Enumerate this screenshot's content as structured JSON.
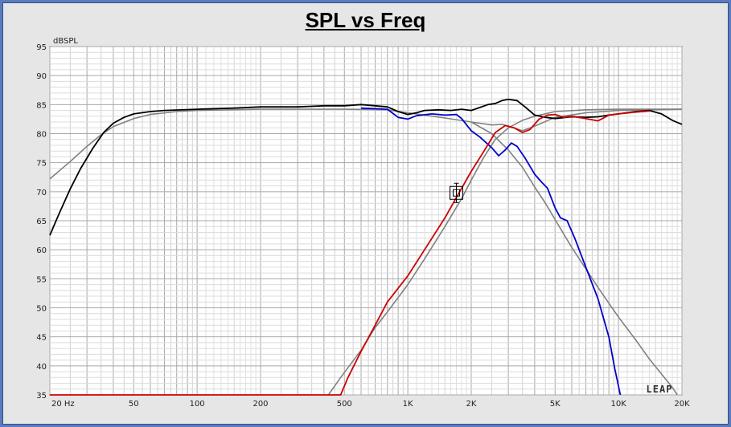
{
  "chart_data": {
    "type": "line",
    "title": "SPL vs Freq",
    "ylabel": "dBSPL",
    "x_scale": "log",
    "xlim": [
      20,
      20000
    ],
    "ylim": [
      35,
      95
    ],
    "y_ticks": [
      35,
      40,
      45,
      50,
      55,
      60,
      65,
      70,
      75,
      80,
      85,
      90,
      95
    ],
    "x_ticks": [
      {
        "value": 20,
        "label": "20  Hz"
      },
      {
        "value": 50,
        "label": "50"
      },
      {
        "value": 100,
        "label": "100"
      },
      {
        "value": 200,
        "label": "200"
      },
      {
        "value": 500,
        "label": "500"
      },
      {
        "value": 1000,
        "label": "1K"
      },
      {
        "value": 2000,
        "label": "2K"
      },
      {
        "value": 5000,
        "label": "5K"
      },
      {
        "value": 10000,
        "label": "10K"
      },
      {
        "value": 20000,
        "label": "20K"
      }
    ],
    "grid": true,
    "watermark": "LEAP",
    "series": [
      {
        "color": "#000000",
        "points": [
          [
            20,
            62.5
          ],
          [
            22,
            66
          ],
          [
            25,
            70.5
          ],
          [
            28,
            74
          ],
          [
            32,
            77.5
          ],
          [
            36,
            80.2
          ],
          [
            40,
            81.8
          ],
          [
            45,
            82.8
          ],
          [
            50,
            83.4
          ],
          [
            60,
            83.8
          ],
          [
            70,
            84
          ],
          [
            100,
            84.2
          ],
          [
            150,
            84.4
          ],
          [
            200,
            84.6
          ],
          [
            300,
            84.6
          ],
          [
            400,
            84.8
          ],
          [
            500,
            84.8
          ],
          [
            600,
            85
          ],
          [
            700,
            84.8
          ],
          [
            800,
            84.6
          ],
          [
            900,
            83.8
          ],
          [
            1000,
            83.3
          ],
          [
            1100,
            83.6
          ],
          [
            1200,
            84
          ],
          [
            1400,
            84.1
          ],
          [
            1600,
            84
          ],
          [
            1800,
            84.2
          ],
          [
            2000,
            84
          ],
          [
            2200,
            84.5
          ],
          [
            2400,
            85
          ],
          [
            2600,
            85.2
          ],
          [
            2800,
            85.7
          ],
          [
            3000,
            85.9
          ],
          [
            3300,
            85.7
          ],
          [
            3600,
            84.6
          ],
          [
            4000,
            83.2
          ],
          [
            4500,
            82.8
          ],
          [
            5000,
            82.6
          ],
          [
            6000,
            82.9
          ],
          [
            7000,
            82.8
          ],
          [
            8000,
            82.9
          ],
          [
            9000,
            83.2
          ],
          [
            10000,
            83.4
          ],
          [
            12000,
            83.8
          ],
          [
            14000,
            84
          ],
          [
            16000,
            83.4
          ],
          [
            18000,
            82.3
          ],
          [
            20000,
            81.6
          ]
        ]
      },
      {
        "color": "#808080",
        "points": [
          [
            20,
            72.2
          ],
          [
            25,
            75.2
          ],
          [
            30,
            77.8
          ],
          [
            35,
            79.8
          ],
          [
            40,
            81.2
          ],
          [
            50,
            82.6
          ],
          [
            60,
            83.3
          ],
          [
            80,
            83.8
          ],
          [
            100,
            84
          ],
          [
            200,
            84.2
          ],
          [
            500,
            84.2
          ],
          [
            800,
            84.1
          ],
          [
            1000,
            83.6
          ],
          [
            1200,
            83.2
          ],
          [
            1500,
            82.7
          ],
          [
            2000,
            82
          ],
          [
            2500,
            81.5
          ],
          [
            2800,
            81.6
          ],
          [
            3000,
            81.3
          ],
          [
            3500,
            80.5
          ],
          [
            4000,
            81.3
          ],
          [
            5000,
            82.8
          ],
          [
            7000,
            83.6
          ],
          [
            10000,
            84
          ],
          [
            20000,
            84.2
          ]
        ]
      },
      {
        "color": "#0000cc",
        "points": [
          [
            600,
            84.4
          ],
          [
            700,
            84.3
          ],
          [
            800,
            84.2
          ],
          [
            900,
            82.8
          ],
          [
            1000,
            82.5
          ],
          [
            1100,
            83.1
          ],
          [
            1300,
            83.4
          ],
          [
            1500,
            83.2
          ],
          [
            1700,
            83.3
          ],
          [
            1800,
            82.6
          ],
          [
            2000,
            80.5
          ],
          [
            2200,
            79.4
          ],
          [
            2500,
            77.6
          ],
          [
            2700,
            76.2
          ],
          [
            2900,
            77.2
          ],
          [
            3100,
            78.4
          ],
          [
            3300,
            77.8
          ],
          [
            3600,
            75.8
          ],
          [
            4000,
            73
          ],
          [
            4300,
            71.7
          ],
          [
            4600,
            70.6
          ],
          [
            5000,
            67.2
          ],
          [
            5300,
            65.5
          ],
          [
            5700,
            65
          ],
          [
            6200,
            62
          ],
          [
            7000,
            57
          ],
          [
            8000,
            51.5
          ],
          [
            9000,
            45
          ],
          [
            9600,
            39.5
          ],
          [
            10200,
            35
          ]
        ]
      },
      {
        "color": "#cc0000",
        "points": [
          [
            20,
            35
          ],
          [
            480,
            35
          ],
          [
            520,
            38
          ],
          [
            600,
            42.5
          ],
          [
            700,
            47
          ],
          [
            800,
            51
          ],
          [
            1000,
            55.5
          ],
          [
            1200,
            60
          ],
          [
            1500,
            65.5
          ],
          [
            1700,
            69
          ],
          [
            2000,
            73.5
          ],
          [
            2300,
            77
          ],
          [
            2600,
            80.2
          ],
          [
            2900,
            81.4
          ],
          [
            3200,
            81
          ],
          [
            3500,
            80.2
          ],
          [
            3800,
            80.7
          ],
          [
            4200,
            82.5
          ],
          [
            4600,
            83.2
          ],
          [
            5000,
            83.3
          ],
          [
            5500,
            82.8
          ],
          [
            6000,
            83
          ],
          [
            7000,
            82.6
          ],
          [
            8000,
            82.2
          ],
          [
            9000,
            83.2
          ],
          [
            10000,
            83.4
          ],
          [
            12000,
            83.7
          ],
          [
            14000,
            83.9
          ]
        ]
      },
      {
        "color": "#808080",
        "points": [
          [
            420,
            35
          ],
          [
            480,
            38
          ],
          [
            600,
            42.7
          ],
          [
            700,
            46.6
          ],
          [
            800,
            49.3
          ],
          [
            1000,
            54
          ],
          [
            1200,
            58.4
          ],
          [
            1500,
            64
          ],
          [
            1800,
            68.8
          ],
          [
            2000,
            72
          ],
          [
            2300,
            76
          ],
          [
            2600,
            79
          ],
          [
            3000,
            81
          ],
          [
            3500,
            82.3
          ],
          [
            4000,
            83
          ],
          [
            5000,
            83.8
          ],
          [
            7000,
            84.1
          ],
          [
            10000,
            84.2
          ],
          [
            20000,
            84.2
          ]
        ]
      },
      {
        "color": "#808080",
        "points": [
          [
            2000,
            82
          ],
          [
            2500,
            80
          ],
          [
            3000,
            77.2
          ],
          [
            3500,
            74.2
          ],
          [
            4000,
            70.8
          ],
          [
            4500,
            68
          ],
          [
            5000,
            65.2
          ],
          [
            6000,
            60.4
          ],
          [
            7000,
            56.7
          ],
          [
            8000,
            53.5
          ],
          [
            9000,
            50.8
          ],
          [
            10000,
            48.4
          ],
          [
            12000,
            44.6
          ],
          [
            14000,
            41.2
          ],
          [
            16000,
            38.6
          ],
          [
            18000,
            36.3
          ],
          [
            19000,
            35
          ]
        ]
      }
    ]
  }
}
